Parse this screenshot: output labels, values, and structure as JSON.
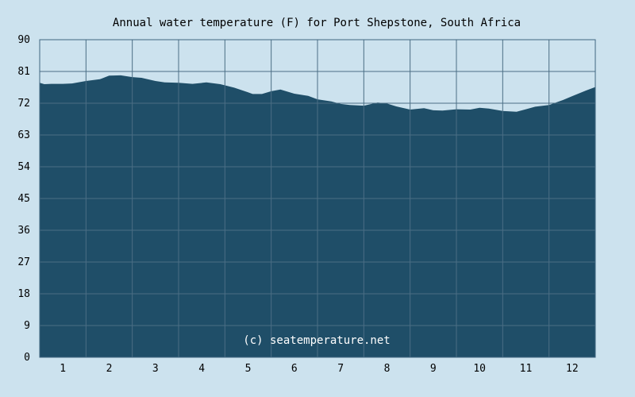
{
  "chart_data": {
    "type": "area",
    "title": "Annual water temperature (F) for Port Shepstone, South Africa",
    "xlabel": "",
    "ylabel": "",
    "categories": [
      "1",
      "2",
      "3",
      "4",
      "5",
      "6",
      "7",
      "8",
      "9",
      "10",
      "11",
      "12"
    ],
    "ylim": [
      0,
      90
    ],
    "yticks": [
      0,
      9,
      18,
      27,
      36,
      45,
      54,
      63,
      72,
      81,
      90
    ],
    "grid": true,
    "legend": "none",
    "annotation": "(c) seatemperature.net",
    "x": [
      0,
      0.1,
      0.25,
      0.5,
      0.7,
      1.0,
      1.3,
      1.5,
      1.75,
      2.0,
      2.2,
      2.5,
      2.7,
      3.0,
      3.3,
      3.6,
      3.9,
      4.2,
      4.5,
      4.6,
      4.8,
      5.0,
      5.2,
      5.5,
      5.8,
      6.0,
      6.3,
      6.5,
      6.7,
      7.0,
      7.3,
      7.5,
      7.7,
      8.0,
      8.3,
      8.5,
      8.7,
      9.0,
      9.3,
      9.5,
      9.7,
      10.0,
      10.3,
      10.5,
      10.7,
      11.0,
      11.3,
      11.5,
      11.8,
      12.0
    ],
    "values": [
      77.8,
      77.4,
      77.5,
      77.5,
      77.6,
      78.3,
      78.8,
      79.8,
      79.9,
      79.4,
      79.2,
      78.3,
      77.9,
      77.8,
      77.5,
      77.9,
      77.4,
      76.4,
      75.1,
      74.6,
      74.6,
      75.4,
      75.9,
      74.7,
      74.1,
      73.1,
      72.5,
      71.8,
      71.5,
      71.3,
      72.2,
      71.9,
      71.1,
      70.2,
      70.6,
      70.0,
      69.9,
      70.3,
      70.2,
      70.7,
      70.5,
      69.8,
      69.6,
      70.3,
      71.0,
      71.5,
      72.9,
      74.0,
      75.6,
      76.6
    ],
    "colors": {
      "background": "#cce2ee",
      "plot_background": "#cce2ee",
      "fill": "#1f4e68",
      "grid": "#4b6e85",
      "frame": "#3f6680",
      "annotation_text": "#ffffff"
    }
  }
}
